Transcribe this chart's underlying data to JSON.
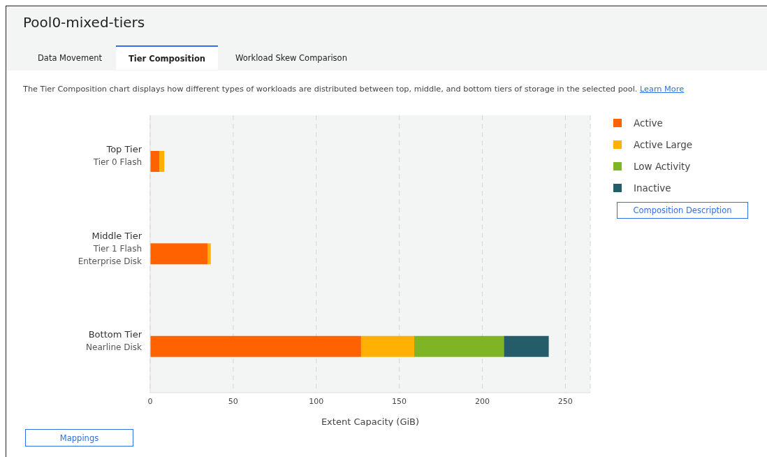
{
  "chart_data": {
    "type": "bar",
    "orientation": "horizontal",
    "stacked": true,
    "title": "Pool0-mixed-tiers",
    "xlabel": "Extent Capacity (GiB)",
    "categories": [
      "Top Tier\nTier 0 Flash",
      "Middle Tier\nTier 1 Flash\nEnterprise Disk",
      "Bottom Tier\nNearline Disk"
    ],
    "series": [
      {
        "name": "Active",
        "color": "#ff6200",
        "values": [
          5.5,
          34.5,
          127
        ]
      },
      {
        "name": "Active Large",
        "color": "#ffb000",
        "values": [
          3,
          2,
          32
        ]
      },
      {
        "name": "Low Activity",
        "color": "#7fb425",
        "values": [
          0,
          0,
          54
        ]
      },
      {
        "name": "Inactive",
        "color": "#245c6a",
        "values": [
          0,
          0,
          27
        ]
      }
    ],
    "xlim": [
      0,
      265
    ],
    "xticks": [
      0,
      50,
      100,
      150,
      200,
      250
    ],
    "grid": "x",
    "legend": "right",
    "annotations": [
      "Data Movement",
      "Tier Composition",
      "Workload Skew Comparison",
      "The Tier Composition chart displays how different types of workloads are distributed between top, middle, and bottom tiers of storage in the selected pool.",
      "Learn More",
      "Composition Description",
      "Mappings"
    ]
  }
}
